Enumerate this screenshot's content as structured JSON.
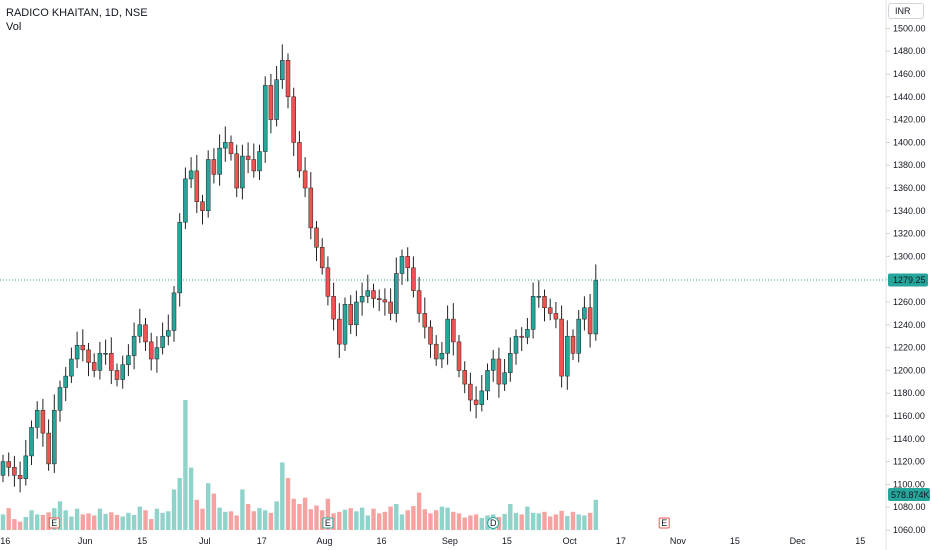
{
  "header": {
    "title": "RADICO KHAITAN, 1D, NSE",
    "volume_label": "Vol"
  },
  "currency": "INR",
  "last_price": "1279.25",
  "last_volume": "578.874K",
  "colors": {
    "up": "#26a69a",
    "down": "#ef5350",
    "vol_up": "#8fd3cb",
    "vol_down": "#f5a3a1",
    "last_line": "#26a69a"
  },
  "chart_data": {
    "type": "candlestick",
    "ylim": [
      1060,
      1510
    ],
    "y_ticks": [
      "1060.00",
      "1080.00",
      "1100.00",
      "1120.00",
      "1140.00",
      "1160.00",
      "1180.00",
      "1200.00",
      "1220.00",
      "1240.00",
      "1260.00",
      "1280.00",
      "1300.00",
      "1320.00",
      "1340.00",
      "1360.00",
      "1380.00",
      "1400.00",
      "1420.00",
      "1440.00",
      "1460.00",
      "1480.00",
      "1500.00"
    ],
    "x_ticks": [
      "16",
      "Jun",
      "15",
      "Jul",
      "17",
      "Aug",
      "16",
      "Sep",
      "15",
      "Oct",
      "17",
      "Nov",
      "15",
      "Dec",
      "15"
    ],
    "events": [
      "E",
      "E",
      "E",
      "D",
      "D",
      "E"
    ],
    "close": [
      1120,
      1115,
      1108,
      1105,
      1125,
      1150,
      1165,
      1145,
      1118,
      1165,
      1185,
      1195,
      1210,
      1222,
      1218,
      1207,
      1200,
      1215,
      1215,
      1200,
      1192,
      1205,
      1213,
      1230,
      1240,
      1225,
      1210,
      1220,
      1230,
      1235,
      1268,
      1330,
      1368,
      1375,
      1348,
      1340,
      1385,
      1372,
      1395,
      1400,
      1390,
      1360,
      1388,
      1385,
      1375,
      1392,
      1450,
      1420,
      1455,
      1472,
      1440,
      1400,
      1375,
      1360,
      1325,
      1308,
      1290,
      1265,
      1245,
      1223,
      1258,
      1240,
      1260,
      1265,
      1270,
      1263,
      1262,
      1260,
      1250,
      1285,
      1300,
      1290,
      1270,
      1250,
      1238,
      1223,
      1210,
      1215,
      1245,
      1225,
      1200,
      1188,
      1174,
      1170,
      1182,
      1200,
      1210,
      1188,
      1198,
      1215,
      1230,
      1229,
      1236,
      1265,
      1265,
      1255,
      1250,
      1245,
      1195,
      1230,
      1215,
      1245,
      1255,
      1232,
      1279
    ],
    "volume_k": [
      300,
      420,
      210,
      160,
      250,
      380,
      300,
      290,
      340,
      420,
      550,
      380,
      260,
      410,
      300,
      320,
      280,
      410,
      310,
      340,
      290,
      260,
      330,
      290,
      450,
      380,
      210,
      410,
      330,
      360,
      780,
      1000,
      2500,
      1200,
      580,
      410,
      900,
      700,
      430,
      350,
      360,
      280,
      780,
      500,
      360,
      420,
      380,
      330,
      550,
      1300,
      1000,
      600,
      500,
      620,
      400,
      470,
      380,
      600,
      320,
      350,
      390,
      420,
      360,
      430,
      280,
      410,
      320,
      350,
      450,
      500,
      300,
      380,
      460,
      720,
      400,
      320,
      380,
      450,
      430,
      350,
      320,
      240,
      280,
      300,
      230,
      280,
      300,
      250,
      310,
      500,
      330,
      300,
      450,
      330,
      320,
      350,
      260,
      300,
      370,
      270,
      350,
      300,
      280,
      330,
      580
    ],
    "volume_axis_max_k": 2500
  }
}
